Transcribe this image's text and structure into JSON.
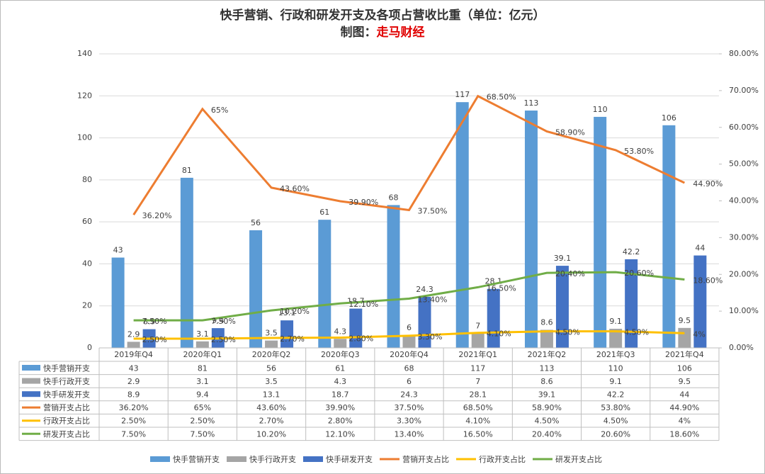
{
  "chart_data": {
    "type": "bar-line",
    "title": "快手营销、行政和研发开支及各项占营收比重（单位：亿元）",
    "subtitle": "制图：",
    "source": "走马财经",
    "categories": [
      "2019年Q4",
      "2020年Q1",
      "2020年Q2",
      "2020年Q3",
      "2020年Q4",
      "2021年Q1",
      "2021年Q2",
      "2021年Q3",
      "2021年Q4"
    ],
    "series": [
      {
        "name": "快手营销开支",
        "type": "bar",
        "color": "#5b9bd5",
        "values": [
          43,
          81,
          56,
          61,
          68,
          117,
          113,
          110,
          106
        ]
      },
      {
        "name": "快手行政开支",
        "type": "bar",
        "color": "#a5a5a5",
        "values": [
          2.9,
          3.1,
          3.5,
          4.3,
          6,
          7,
          8.6,
          9.1,
          9.5
        ]
      },
      {
        "name": "快手研发开支",
        "type": "bar",
        "color": "#4472c4",
        "values": [
          8.9,
          9.4,
          13.1,
          18.7,
          24.3,
          28.1,
          39.1,
          42.2,
          44
        ]
      },
      {
        "name": "营销开支占比",
        "type": "line",
        "axis": "y2",
        "color": "#ed7d31",
        "values": [
          36.2,
          65,
          43.6,
          39.9,
          37.5,
          68.5,
          58.9,
          53.8,
          44.9
        ],
        "value_labels": [
          "36.20%",
          "65%",
          "43.60%",
          "39.90%",
          "37.50%",
          "68.50%",
          "58.90%",
          "53.80%",
          "44.90%"
        ]
      },
      {
        "name": "行政开支占比",
        "type": "line",
        "axis": "y2",
        "color": "#ffc000",
        "values": [
          2.5,
          2.5,
          2.7,
          2.8,
          3.3,
          4.1,
          4.5,
          4.5,
          4
        ],
        "value_labels": [
          "2.50%",
          "2.50%",
          "2.70%",
          "2.80%",
          "3.30%",
          "4.10%",
          "4.50%",
          "4.50%",
          "4%"
        ]
      },
      {
        "name": "研发开支占比",
        "type": "line",
        "axis": "y2",
        "color": "#70ad47",
        "values": [
          7.5,
          7.5,
          10.2,
          12.1,
          13.4,
          16.5,
          20.4,
          20.6,
          18.6
        ],
        "value_labels": [
          "7.50%",
          "7.50%",
          "10.20%",
          "12.10%",
          "13.40%",
          "16.50%",
          "20.40%",
          "20.60%",
          "18.60%"
        ]
      }
    ],
    "ylim": [
      0,
      140
    ],
    "yticks": [
      0,
      20,
      40,
      60,
      80,
      100,
      120,
      140
    ],
    "y2lim": [
      0,
      80
    ],
    "y2ticks": [
      {
        "value": 0,
        "label": "0.00%"
      },
      {
        "value": 10,
        "label": "10.00%"
      },
      {
        "value": 20,
        "label": "20.00%"
      },
      {
        "value": 30,
        "label": "30.00%"
      },
      {
        "value": 40,
        "label": "40.00%"
      },
      {
        "value": 50,
        "label": "50.00%"
      },
      {
        "value": 60,
        "label": "60.00%"
      },
      {
        "value": 70,
        "label": "70.00%"
      },
      {
        "value": 80,
        "label": "80.00%"
      }
    ],
    "grid": true,
    "legend": "bottom"
  }
}
